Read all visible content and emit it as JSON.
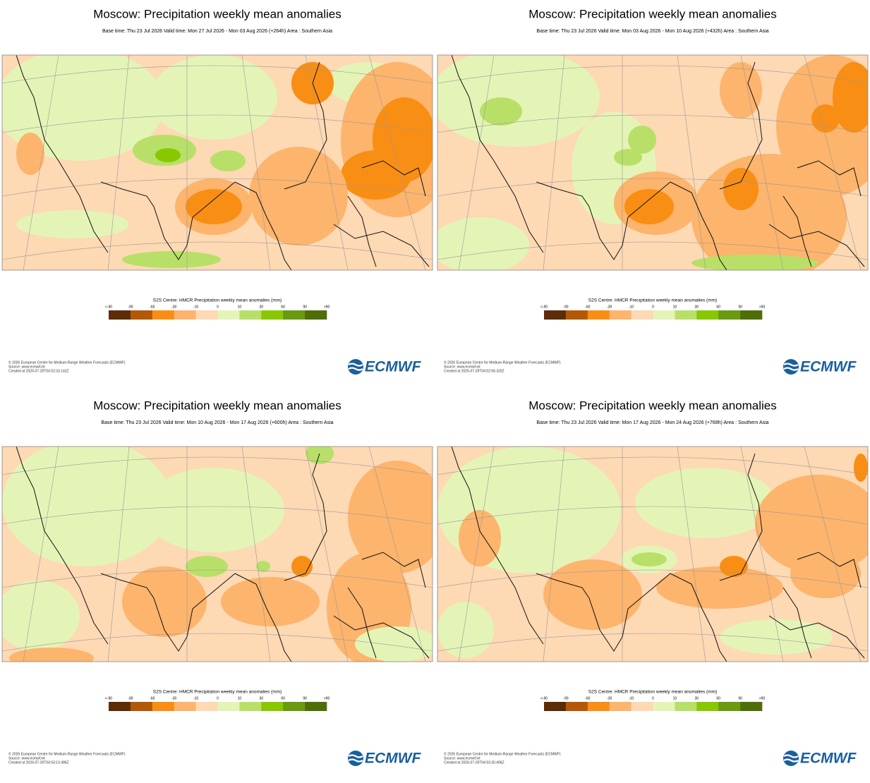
{
  "panels": [
    {
      "title": "Moscow: Precipitation weekly mean anomalies",
      "subtitle": "Base time: Thu 23 Jul 2026 Valid time: Mon 27 Jul 2026 - Mon 03 Aug 2026 (+264h) Area : Southern Asia",
      "legend_title": "S2S Centre: HMCR Precipitation weekly mean anomalies (mm)",
      "footer": [
        "© 2026 European Centre for Medium-Range Weather Forecasts (ECMWF)",
        "Source: www.ecmwf.int",
        "Created at 2026-07-29T04:52:33.142Z"
      ]
    },
    {
      "title": "Moscow: Precipitation weekly mean anomalies",
      "subtitle": "Base time: Thu 23 Jul 2026 Valid time: Mon 03 Aug 2026 - Mon 10 Aug 2026 (+432h) Area : Southern Asia",
      "legend_title": "S2S Centre: HMCR Precipitation weekly mean anomalies (mm)",
      "footer": [
        "© 2026 European Centre for Medium-Range Weather Forecasts (ECMWF)",
        "Source: www.ecmwf.int",
        "Created at 2026-07-29T04:52:58.320Z"
      ]
    },
    {
      "title": "Moscow: Precipitation weekly mean anomalies",
      "subtitle": "Base time: Thu 23 Jul 2026 Valid time: Mon 10 Aug 2026 - Mon 17 Aug 2026 (+600h) Area : Southern Asia",
      "legend_title": "S2S Centre: HMCR Precipitation weekly mean anomalies (mm)",
      "footer": [
        "© 2026 European Centre for Medium-Range Weather Forecasts (ECMWF)",
        "Source: www.ecmwf.int",
        "Created at 2026-07-29T04:53:13.496Z"
      ]
    },
    {
      "title": "Moscow: Precipitation weekly mean anomalies",
      "subtitle": "Base time: Thu 23 Jul 2026 Valid time: Mon 17 Aug 2026 - Mon 24 Aug 2026 (+768h) Area : Southern Asia",
      "legend_title": "S2S Centre: HMCR Precipitation weekly mean anomalies (mm)",
      "footer": [
        "© 2026 European Centre for Medium-Range Weather Forecasts (ECMWF)",
        "Source: www.ecmwf.int",
        "Created at 2026-07-29T04:53:30.406Z"
      ]
    }
  ],
  "legend": {
    "labels": [
      "<-90",
      "-90",
      "-60",
      "-30",
      "-10",
      "0",
      "10",
      "30",
      "60",
      "90",
      ">90"
    ],
    "colors": [
      "#5c2c06",
      "#b35806",
      "#f98e14",
      "#fdb46c",
      "#fdd9b4",
      "#e4f4b7",
      "#b8e068",
      "#89c800",
      "#6a9a10",
      "#4f6e0a"
    ]
  },
  "logo": "ECMWF"
}
